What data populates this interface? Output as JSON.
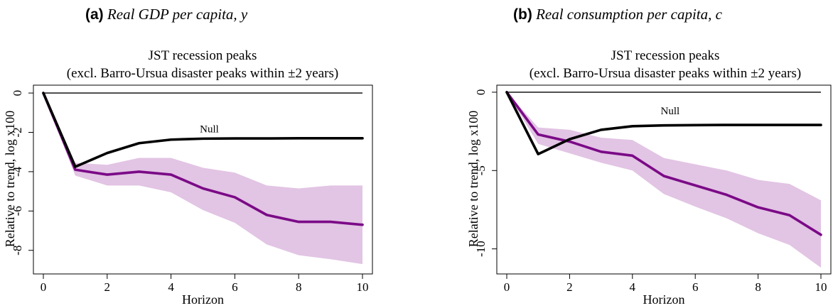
{
  "chart_data": [
    {
      "type": "line",
      "panel_label": "(a)",
      "caption": "Real GDP per capita, y",
      "title": "JST recession peaks",
      "subtitle": "(excl. Barro-Ursua disaster peaks within ±2 years)",
      "xlabel": "Horizon",
      "ylabel": "Relative to trend, log x100",
      "xlim": [
        0,
        10
      ],
      "ylim": [
        -9.2,
        0.4
      ],
      "xticks": [
        0,
        2,
        4,
        6,
        8,
        10
      ],
      "yticks": [
        0,
        -2,
        -4,
        -6,
        -8
      ],
      "x": [
        0,
        1,
        2,
        3,
        4,
        5,
        6,
        7,
        8,
        9,
        10
      ],
      "series": [
        {
          "values": [
            0,
            -3.9,
            -4.15,
            -4.0,
            -4.15,
            -4.85,
            -5.3,
            -6.2,
            -6.55,
            -6.55,
            -6.7
          ],
          "color": "#7b0a87"
        },
        {
          "name": "Null",
          "values": [
            0,
            -3.75,
            -3.05,
            -2.55,
            -2.37,
            -2.32,
            -2.31,
            -2.31,
            -2.3,
            -2.3,
            -2.3
          ],
          "color": "#000000"
        }
      ],
      "band": {
        "lower": [
          0,
          -4.2,
          -4.7,
          -4.7,
          -5.05,
          -5.95,
          -6.6,
          -7.7,
          -8.25,
          -8.45,
          -8.7
        ],
        "upper": [
          0,
          -3.55,
          -3.65,
          -3.3,
          -3.3,
          -3.8,
          -4.05,
          -4.7,
          -4.85,
          -4.7,
          -4.7
        ],
        "color": "#e2c4e4"
      },
      "zero_line": true,
      "null_label": "Null",
      "null_label_at": [
        5.2,
        -2.0
      ]
    },
    {
      "type": "line",
      "panel_label": "(b)",
      "caption": "Real consumption per capita, c",
      "title": "JST recession peaks",
      "subtitle": "(excl. Barro-Ursua disaster peaks within ±2 years)",
      "xlabel": "Horizon",
      "ylabel": "Relative to trend, log x100",
      "xlim": [
        0,
        10
      ],
      "ylim": [
        -11.6,
        0.45
      ],
      "xticks": [
        0,
        2,
        4,
        6,
        8,
        10
      ],
      "yticks": [
        0,
        -5,
        -10
      ],
      "x": [
        0,
        1,
        2,
        3,
        4,
        5,
        6,
        7,
        8,
        9,
        10
      ],
      "series": [
        {
          "values": [
            0,
            -2.7,
            -3.15,
            -3.8,
            -4.05,
            -5.35,
            -5.95,
            -6.55,
            -7.35,
            -7.85,
            -9.1
          ],
          "color": "#7b0a87"
        },
        {
          "name": "Null",
          "values": [
            0,
            -3.95,
            -3.0,
            -2.4,
            -2.17,
            -2.12,
            -2.1,
            -2.09,
            -2.09,
            -2.09,
            -2.09
          ],
          "color": "#000000"
        }
      ],
      "band": {
        "lower": [
          0,
          -3.3,
          -3.9,
          -4.5,
          -5.0,
          -6.5,
          -7.3,
          -8.05,
          -9.0,
          -9.75,
          -11.2
        ],
        "upper": [
          0,
          -2.25,
          -2.4,
          -2.9,
          -3.05,
          -4.2,
          -4.6,
          -5.0,
          -5.6,
          -5.85,
          -6.9
        ],
        "color": "#e2c4e4"
      },
      "zero_line": true,
      "null_label": "Null",
      "null_label_at": [
        5.2,
        -1.4
      ]
    }
  ]
}
